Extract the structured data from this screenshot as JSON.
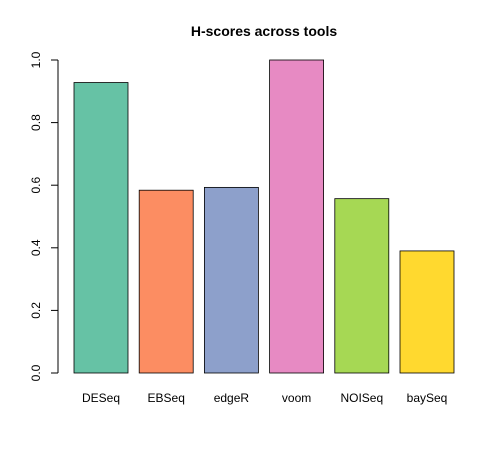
{
  "chart_data": {
    "type": "bar",
    "title": "H-scores across tools",
    "xlabel": "",
    "ylabel": "",
    "categories": [
      "DESeq",
      "EBSeq",
      "edgeR",
      "voom",
      "NOISeq",
      "baySeq"
    ],
    "values": [
      0.928,
      0.584,
      0.593,
      1.0,
      0.557,
      0.39
    ],
    "colors": [
      "#66C2A5",
      "#FC8D62",
      "#8DA0CB",
      "#E78AC3",
      "#A6D854",
      "#FFD92F"
    ],
    "ylim": [
      0,
      1.0
    ],
    "yticks": [
      "0.0",
      "0.2",
      "0.4",
      "0.6",
      "0.8",
      "1.0"
    ],
    "grid": false,
    "legend": "none"
  }
}
